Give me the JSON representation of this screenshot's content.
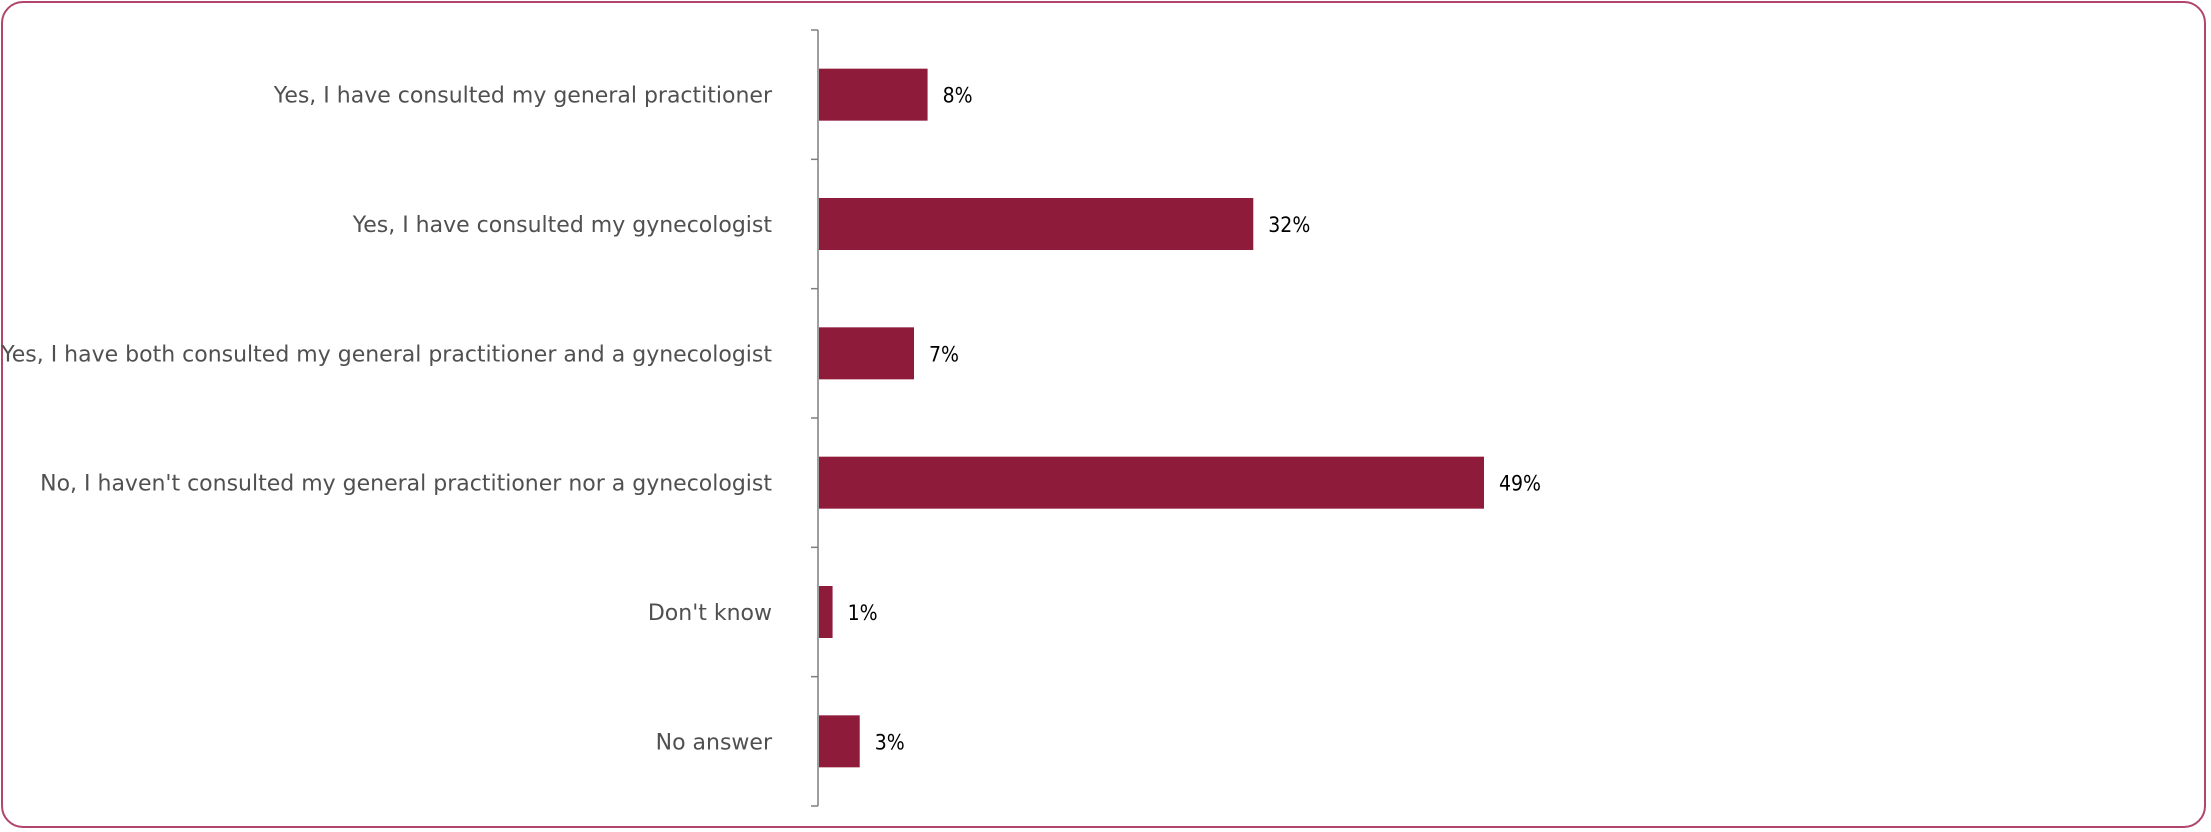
{
  "chart_data": {
    "type": "bar",
    "orientation": "horizontal",
    "title": "",
    "xlabel": "",
    "ylabel": "",
    "categories": [
      "Yes, I have consulted my general practitioner",
      "Yes, I have consulted my gynecologist",
      "Yes, I have both consulted my general practitioner and a gynecologist",
      "No, I haven't consulted my general practitioner nor a gynecologist",
      "Don't know",
      "No answer"
    ],
    "values": [
      8,
      32,
      7,
      49,
      1,
      3
    ],
    "value_labels": [
      "8%",
      "32%",
      "7%",
      "49%",
      "1%",
      "3%"
    ],
    "unit": "%",
    "xlim": [
      0,
      100
    ],
    "grid": false,
    "legend": "none",
    "colors": {
      "bar": "#8f1b3a",
      "axis": "#7f7f7f",
      "border": "#b0456e"
    }
  }
}
